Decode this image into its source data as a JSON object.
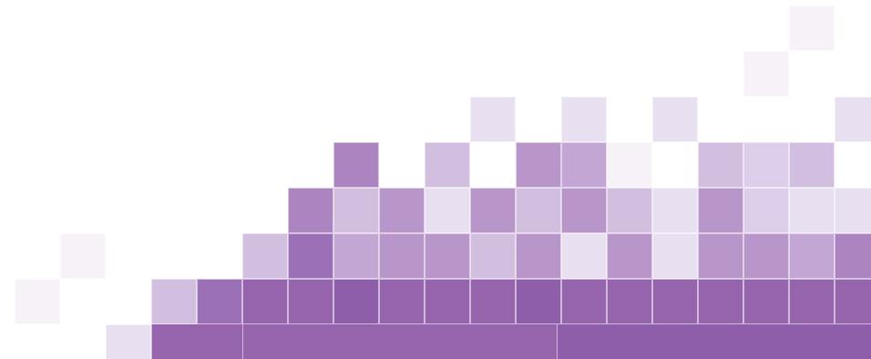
{
  "palette": {
    "p1": "#f6f2f8",
    "p2": "#e8dff0",
    "p3": "#dccdea",
    "p4": "#d2bfe0",
    "p5": "#c4a6d4",
    "p6": "#b896ca",
    "p7": "#ab84c0",
    "p8": "#9c70b6",
    "p9": "#9564ad",
    "p10": "#8f5eab"
  },
  "rows": [
    {
      "label": "row-1",
      "cells": [
        {
          "col": 17,
          "tone": "p1"
        }
      ]
    },
    {
      "label": "row-2",
      "cells": [
        {
          "col": 16,
          "tone": "p1"
        }
      ]
    },
    {
      "label": "row-3",
      "cells": [
        {
          "col": 10,
          "tone": "p2"
        },
        {
          "col": 12,
          "tone": "p2"
        },
        {
          "col": 14,
          "tone": "p2"
        },
        {
          "col": 18,
          "tone": "p2"
        }
      ]
    },
    {
      "label": "row-4",
      "cells": [
        {
          "col": 7,
          "tone": "p7"
        },
        {
          "col": 9,
          "tone": "p4"
        },
        {
          "col": 11,
          "tone": "p6"
        },
        {
          "col": 12,
          "tone": "p5"
        },
        {
          "col": 13,
          "tone": "p1"
        },
        {
          "col": 15,
          "tone": "p4"
        },
        {
          "col": 16,
          "tone": "p3"
        },
        {
          "col": 17,
          "tone": "p4"
        }
      ]
    },
    {
      "label": "row-5",
      "cells": [
        {
          "col": 6,
          "tone": "p7"
        },
        {
          "col": 7,
          "tone": "p4"
        },
        {
          "col": 8,
          "tone": "p6"
        },
        {
          "col": 9,
          "tone": "p2"
        },
        {
          "col": 10,
          "tone": "p6"
        },
        {
          "col": 11,
          "tone": "p4"
        },
        {
          "col": 12,
          "tone": "p6"
        },
        {
          "col": 13,
          "tone": "p4"
        },
        {
          "col": 14,
          "tone": "p2"
        },
        {
          "col": 15,
          "tone": "p6"
        },
        {
          "col": 16,
          "tone": "p3"
        },
        {
          "col": 17,
          "tone": "p2"
        },
        {
          "col": 18,
          "tone": "p2"
        }
      ]
    },
    {
      "label": "row-6",
      "cells": [
        {
          "col": 1,
          "tone": "p1"
        },
        {
          "col": 5,
          "tone": "p4"
        },
        {
          "col": 6,
          "tone": "p8"
        },
        {
          "col": 7,
          "tone": "p5"
        },
        {
          "col": 8,
          "tone": "p6"
        },
        {
          "col": 9,
          "tone": "p6"
        },
        {
          "col": 10,
          "tone": "p4"
        },
        {
          "col": 11,
          "tone": "p6"
        },
        {
          "col": 12,
          "tone": "p2"
        },
        {
          "col": 13,
          "tone": "p6"
        },
        {
          "col": 14,
          "tone": "p2"
        },
        {
          "col": 15,
          "tone": "p6"
        },
        {
          "col": 16,
          "tone": "p6"
        },
        {
          "col": 17,
          "tone": "p5"
        },
        {
          "col": 18,
          "tone": "p7"
        }
      ]
    },
    {
      "label": "row-7",
      "cells": [
        {
          "col": 0,
          "tone": "p1"
        },
        {
          "col": 3,
          "tone": "p4"
        },
        {
          "col": 4,
          "tone": "p8"
        },
        {
          "col": 5,
          "tone": "p9"
        },
        {
          "col": 6,
          "tone": "p9"
        },
        {
          "col": 7,
          "tone": "p10"
        },
        {
          "col": 8,
          "tone": "p9"
        },
        {
          "col": 9,
          "tone": "p9"
        },
        {
          "col": 10,
          "tone": "p9"
        },
        {
          "col": 11,
          "tone": "p10"
        },
        {
          "col": 12,
          "tone": "p9"
        },
        {
          "col": 13,
          "tone": "p9"
        },
        {
          "col": 14,
          "tone": "p9"
        },
        {
          "col": 15,
          "tone": "p9"
        },
        {
          "col": 16,
          "tone": "p9"
        },
        {
          "col": 17,
          "tone": "p9"
        },
        {
          "col": 18,
          "tone": "p9"
        }
      ]
    },
    {
      "label": "row-8",
      "cells": [
        {
          "col": 2,
          "tone": "p2"
        }
      ]
    }
  ],
  "bottom_band": {
    "tone": "p10",
    "segments": [
      {
        "tone": "p9"
      },
      {
        "tone": "p9"
      },
      {
        "tone": "p10"
      }
    ]
  }
}
